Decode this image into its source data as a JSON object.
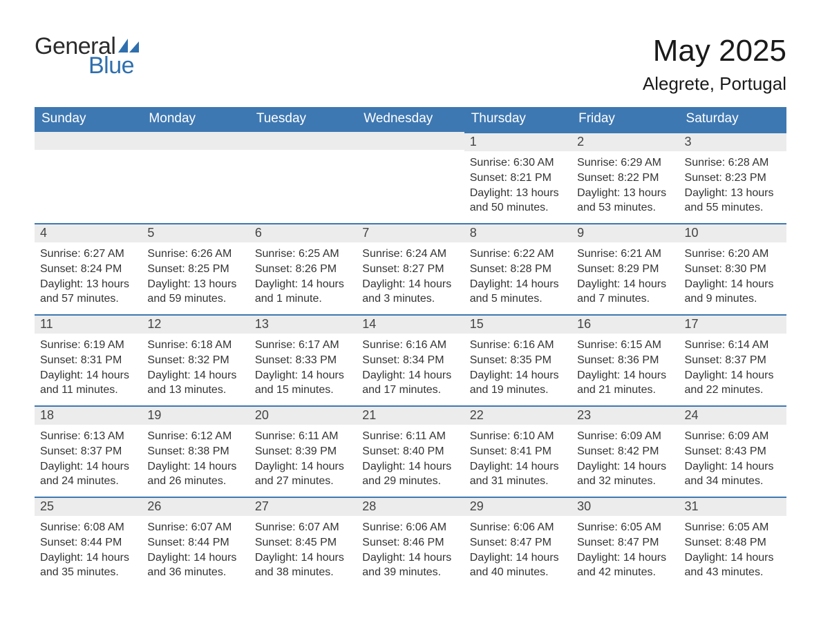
{
  "brand": {
    "word1": "General",
    "word2": "Blue",
    "text_color": "#2b2b2b",
    "accent_color": "#2f6fae"
  },
  "title": "May 2025",
  "location": "Alegrete, Portugal",
  "colors": {
    "header_bg": "#3e78b2",
    "header_text": "#ffffff",
    "daybar_bg": "#ececec",
    "daybar_border": "#3e78b2",
    "daynum_text": "#444444",
    "body_text": "#333333",
    "page_bg": "#ffffff"
  },
  "calendar": {
    "type": "table",
    "columns": [
      "Sunday",
      "Monday",
      "Tuesday",
      "Wednesday",
      "Thursday",
      "Friday",
      "Saturday"
    ],
    "weeks": [
      [
        null,
        null,
        null,
        null,
        {
          "n": "1",
          "sunrise": "6:30 AM",
          "sunset": "8:21 PM",
          "daylight": "13 hours and 50 minutes."
        },
        {
          "n": "2",
          "sunrise": "6:29 AM",
          "sunset": "8:22 PM",
          "daylight": "13 hours and 53 minutes."
        },
        {
          "n": "3",
          "sunrise": "6:28 AM",
          "sunset": "8:23 PM",
          "daylight": "13 hours and 55 minutes."
        }
      ],
      [
        {
          "n": "4",
          "sunrise": "6:27 AM",
          "sunset": "8:24 PM",
          "daylight": "13 hours and 57 minutes."
        },
        {
          "n": "5",
          "sunrise": "6:26 AM",
          "sunset": "8:25 PM",
          "daylight": "13 hours and 59 minutes."
        },
        {
          "n": "6",
          "sunrise": "6:25 AM",
          "sunset": "8:26 PM",
          "daylight": "14 hours and 1 minute."
        },
        {
          "n": "7",
          "sunrise": "6:24 AM",
          "sunset": "8:27 PM",
          "daylight": "14 hours and 3 minutes."
        },
        {
          "n": "8",
          "sunrise": "6:22 AM",
          "sunset": "8:28 PM",
          "daylight": "14 hours and 5 minutes."
        },
        {
          "n": "9",
          "sunrise": "6:21 AM",
          "sunset": "8:29 PM",
          "daylight": "14 hours and 7 minutes."
        },
        {
          "n": "10",
          "sunrise": "6:20 AM",
          "sunset": "8:30 PM",
          "daylight": "14 hours and 9 minutes."
        }
      ],
      [
        {
          "n": "11",
          "sunrise": "6:19 AM",
          "sunset": "8:31 PM",
          "daylight": "14 hours and 11 minutes."
        },
        {
          "n": "12",
          "sunrise": "6:18 AM",
          "sunset": "8:32 PM",
          "daylight": "14 hours and 13 minutes."
        },
        {
          "n": "13",
          "sunrise": "6:17 AM",
          "sunset": "8:33 PM",
          "daylight": "14 hours and 15 minutes."
        },
        {
          "n": "14",
          "sunrise": "6:16 AM",
          "sunset": "8:34 PM",
          "daylight": "14 hours and 17 minutes."
        },
        {
          "n": "15",
          "sunrise": "6:16 AM",
          "sunset": "8:35 PM",
          "daylight": "14 hours and 19 minutes."
        },
        {
          "n": "16",
          "sunrise": "6:15 AM",
          "sunset": "8:36 PM",
          "daylight": "14 hours and 21 minutes."
        },
        {
          "n": "17",
          "sunrise": "6:14 AM",
          "sunset": "8:37 PM",
          "daylight": "14 hours and 22 minutes."
        }
      ],
      [
        {
          "n": "18",
          "sunrise": "6:13 AM",
          "sunset": "8:37 PM",
          "daylight": "14 hours and 24 minutes."
        },
        {
          "n": "19",
          "sunrise": "6:12 AM",
          "sunset": "8:38 PM",
          "daylight": "14 hours and 26 minutes."
        },
        {
          "n": "20",
          "sunrise": "6:11 AM",
          "sunset": "8:39 PM",
          "daylight": "14 hours and 27 minutes."
        },
        {
          "n": "21",
          "sunrise": "6:11 AM",
          "sunset": "8:40 PM",
          "daylight": "14 hours and 29 minutes."
        },
        {
          "n": "22",
          "sunrise": "6:10 AM",
          "sunset": "8:41 PM",
          "daylight": "14 hours and 31 minutes."
        },
        {
          "n": "23",
          "sunrise": "6:09 AM",
          "sunset": "8:42 PM",
          "daylight": "14 hours and 32 minutes."
        },
        {
          "n": "24",
          "sunrise": "6:09 AM",
          "sunset": "8:43 PM",
          "daylight": "14 hours and 34 minutes."
        }
      ],
      [
        {
          "n": "25",
          "sunrise": "6:08 AM",
          "sunset": "8:44 PM",
          "daylight": "14 hours and 35 minutes."
        },
        {
          "n": "26",
          "sunrise": "6:07 AM",
          "sunset": "8:44 PM",
          "daylight": "14 hours and 36 minutes."
        },
        {
          "n": "27",
          "sunrise": "6:07 AM",
          "sunset": "8:45 PM",
          "daylight": "14 hours and 38 minutes."
        },
        {
          "n": "28",
          "sunrise": "6:06 AM",
          "sunset": "8:46 PM",
          "daylight": "14 hours and 39 minutes."
        },
        {
          "n": "29",
          "sunrise": "6:06 AM",
          "sunset": "8:47 PM",
          "daylight": "14 hours and 40 minutes."
        },
        {
          "n": "30",
          "sunrise": "6:05 AM",
          "sunset": "8:47 PM",
          "daylight": "14 hours and 42 minutes."
        },
        {
          "n": "31",
          "sunrise": "6:05 AM",
          "sunset": "8:48 PM",
          "daylight": "14 hours and 43 minutes."
        }
      ]
    ],
    "labels": {
      "sunrise": "Sunrise: ",
      "sunset": "Sunset: ",
      "daylight": "Daylight: "
    }
  }
}
